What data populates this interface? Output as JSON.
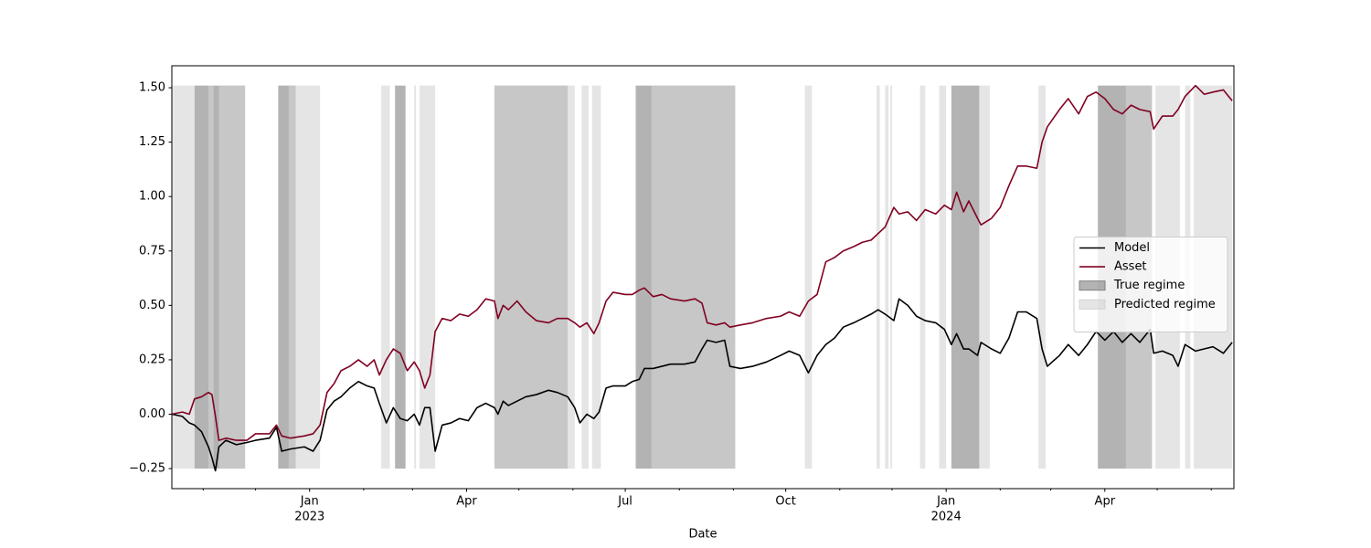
{
  "chart_data": {
    "type": "line",
    "xlabel": "Date",
    "xlim": [
      "2022-10-14",
      "2024-06-14"
    ],
    "ylim": [
      -0.342,
      1.601
    ],
    "xticks": [
      {
        "value": "2023-01-01",
        "label": "Jan"
      },
      {
        "value": "2023-04-01",
        "label": "Apr"
      },
      {
        "value": "2023-07-01",
        "label": "Jul"
      },
      {
        "value": "2023-10-01",
        "label": "Oct"
      },
      {
        "value": "2024-01-01",
        "label": "Jan"
      },
      {
        "value": "2024-04-01",
        "label": "Apr"
      }
    ],
    "xticks_year": [
      {
        "value": "2023-01-01",
        "label": "2023"
      },
      {
        "value": "2024-01-01",
        "label": "2024"
      }
    ],
    "xminorticks": [
      "2022-11-01",
      "2022-12-01",
      "2023-02-01",
      "2023-03-01",
      "2023-05-01",
      "2023-06-01",
      "2023-08-01",
      "2023-09-01",
      "2023-11-01",
      "2023-12-01",
      "2024-02-01",
      "2024-03-01",
      "2024-05-01",
      "2024-06-01"
    ],
    "yticks": [
      {
        "value": -0.25,
        "label": "−0.25"
      },
      {
        "value": 0,
        "label": "0.00"
      },
      0.25,
      {
        "value": 0.5,
        "label": "0.50"
      },
      0.75,
      {
        "value": 1,
        "label": "1.00"
      },
      1.25,
      {
        "value": 1.5,
        "label": "1.50"
      }
    ],
    "legend": "center right",
    "x": [
      "2022-10-14",
      "2022-10-20",
      "2022-10-24",
      "2022-10-27",
      "2022-10-31",
      "2022-11-04",
      "2022-11-06",
      "2022-11-08",
      "2022-11-10",
      "2022-11-14",
      "2022-11-20",
      "2022-11-26",
      "2022-12-01",
      "2022-12-09",
      "2022-12-13",
      "2022-12-16",
      "2022-12-21",
      "2022-12-29",
      "2023-01-03",
      "2023-01-07",
      "2023-01-11",
      "2023-01-15",
      "2023-01-19",
      "2023-01-24",
      "2023-01-29",
      "2023-02-03",
      "2023-02-07",
      "2023-02-10",
      "2023-02-14",
      "2023-02-18",
      "2023-02-22",
      "2023-02-26",
      "2023-03-02",
      "2023-03-05",
      "2023-03-08",
      "2023-03-11",
      "2023-03-14",
      "2023-03-18",
      "2023-03-23",
      "2023-03-28",
      "2023-04-02",
      "2023-04-07",
      "2023-04-12",
      "2023-04-17",
      "2023-04-19",
      "2023-04-22",
      "2023-04-25",
      "2023-04-30",
      "2023-05-05",
      "2023-05-11",
      "2023-05-18",
      "2023-05-23",
      "2023-05-29",
      "2023-06-02",
      "2023-06-05",
      "2023-06-09",
      "2023-06-13",
      "2023-06-16",
      "2023-06-20",
      "2023-06-24",
      "2023-07-01",
      "2023-07-05",
      "2023-07-09",
      "2023-07-12",
      "2023-07-17",
      "2023-07-22",
      "2023-07-27",
      "2023-08-04",
      "2023-08-10",
      "2023-08-14",
      "2023-08-17",
      "2023-08-22",
      "2023-08-27",
      "2023-08-30",
      "2023-09-05",
      "2023-09-12",
      "2023-09-20",
      "2023-09-28",
      "2023-10-03",
      "2023-10-09",
      "2023-10-14",
      "2023-10-19",
      "2023-10-24",
      "2023-10-29",
      "2023-11-03",
      "2023-11-09",
      "2023-11-14",
      "2023-11-19",
      "2023-11-23",
      "2023-11-27",
      "2023-12-02",
      "2023-12-05",
      "2023-12-10",
      "2023-12-15",
      "2023-12-20",
      "2023-12-26",
      "2023-12-31",
      "2024-01-04",
      "2024-01-07",
      "2024-01-11",
      "2024-01-14",
      "2024-01-19",
      "2024-01-21",
      "2024-01-27",
      "2024-02-01",
      "2024-02-06",
      "2024-02-11",
      "2024-02-16",
      "2024-02-22",
      "2024-02-25",
      "2024-02-28",
      "2024-03-06",
      "2024-03-11",
      "2024-03-17",
      "2024-03-22",
      "2024-03-27",
      "2024-04-01",
      "2024-04-06",
      "2024-04-11",
      "2024-04-16",
      "2024-04-21",
      "2024-04-27",
      "2024-04-29",
      "2024-05-04",
      "2024-05-10",
      "2024-05-13",
      "2024-05-17",
      "2024-05-23",
      "2024-05-28",
      "2024-06-02",
      "2024-06-08",
      "2024-06-13"
    ],
    "series": [
      {
        "name": "Model",
        "color": "#000000",
        "values": [
          0.0,
          -0.01,
          -0.04,
          -0.05,
          -0.08,
          -0.15,
          -0.2,
          -0.26,
          -0.15,
          -0.12,
          -0.14,
          -0.13,
          -0.12,
          -0.11,
          -0.06,
          -0.17,
          -0.16,
          -0.15,
          -0.17,
          -0.12,
          0.02,
          0.06,
          0.08,
          0.12,
          0.15,
          0.13,
          0.12,
          0.05,
          -0.04,
          0.03,
          -0.02,
          -0.03,
          0.0,
          -0.05,
          0.03,
          0.03,
          -0.17,
          -0.05,
          -0.04,
          -0.02,
          -0.03,
          0.03,
          0.05,
          0.03,
          0.0,
          0.06,
          0.04,
          0.06,
          0.08,
          0.09,
          0.11,
          0.1,
          0.08,
          0.03,
          -0.04,
          0.0,
          -0.02,
          0.01,
          0.12,
          0.13,
          0.13,
          0.15,
          0.16,
          0.21,
          0.21,
          0.22,
          0.23,
          0.23,
          0.24,
          0.3,
          0.34,
          0.33,
          0.34,
          0.22,
          0.21,
          0.22,
          0.24,
          0.27,
          0.29,
          0.27,
          0.19,
          0.27,
          0.32,
          0.35,
          0.4,
          0.42,
          0.44,
          0.46,
          0.48,
          0.46,
          0.43,
          0.53,
          0.5,
          0.45,
          0.43,
          0.42,
          0.39,
          0.32,
          0.37,
          0.3,
          0.3,
          0.27,
          0.33,
          0.3,
          0.28,
          0.35,
          0.47,
          0.47,
          0.44,
          0.3,
          0.22,
          0.27,
          0.32,
          0.27,
          0.32,
          0.38,
          0.34,
          0.38,
          0.33,
          0.37,
          0.33,
          0.39,
          0.28,
          0.29,
          0.27,
          0.22,
          0.32,
          0.29,
          0.3,
          0.31,
          0.28,
          0.33
        ]
      },
      {
        "name": "Asset",
        "color": "#800020",
        "values": [
          0.0,
          0.01,
          0.0,
          0.07,
          0.08,
          0.1,
          0.09,
          -0.01,
          -0.12,
          -0.11,
          -0.12,
          -0.12,
          -0.09,
          -0.09,
          -0.05,
          -0.1,
          -0.11,
          -0.1,
          -0.09,
          -0.05,
          0.1,
          0.14,
          0.2,
          0.22,
          0.25,
          0.22,
          0.25,
          0.18,
          0.25,
          0.3,
          0.28,
          0.2,
          0.24,
          0.2,
          0.12,
          0.18,
          0.38,
          0.44,
          0.43,
          0.46,
          0.45,
          0.48,
          0.53,
          0.52,
          0.44,
          0.5,
          0.48,
          0.52,
          0.47,
          0.43,
          0.42,
          0.44,
          0.44,
          0.42,
          0.4,
          0.42,
          0.37,
          0.42,
          0.52,
          0.56,
          0.55,
          0.55,
          0.57,
          0.58,
          0.54,
          0.55,
          0.53,
          0.52,
          0.53,
          0.51,
          0.42,
          0.41,
          0.42,
          0.4,
          0.41,
          0.42,
          0.44,
          0.45,
          0.47,
          0.45,
          0.52,
          0.55,
          0.7,
          0.72,
          0.75,
          0.77,
          0.79,
          0.8,
          0.83,
          0.86,
          0.95,
          0.92,
          0.93,
          0.89,
          0.94,
          0.92,
          0.96,
          0.94,
          1.02,
          0.93,
          0.98,
          0.9,
          0.87,
          0.9,
          0.95,
          1.05,
          1.14,
          1.14,
          1.13,
          1.25,
          1.32,
          1.4,
          1.45,
          1.38,
          1.46,
          1.48,
          1.45,
          1.4,
          1.38,
          1.42,
          1.4,
          1.39,
          1.31,
          1.37,
          1.37,
          1.4,
          1.46,
          1.51,
          1.47,
          1.48,
          1.49,
          1.44
        ]
      }
    ],
    "span_ylim": [
      -0.25,
      1.51
    ],
    "regions": [
      {
        "name": "True regime",
        "color": "#808080",
        "spans": [
          [
            "2022-10-27",
            "2022-11-25"
          ],
          [
            "2022-12-14",
            "2022-12-24"
          ],
          [
            "2023-02-19",
            "2023-02-25"
          ],
          [
            "2023-04-17",
            "2023-05-29"
          ],
          [
            "2023-07-07",
            "2023-09-02"
          ],
          [
            "2024-01-04",
            "2024-01-20"
          ],
          [
            "2024-03-28",
            "2024-04-28"
          ]
        ]
      },
      {
        "name": "Predicted regime",
        "color": "#d3d3d3",
        "spans": [
          [
            "2022-10-14",
            "2022-10-27"
          ],
          [
            "2022-11-04",
            "2022-11-07"
          ],
          [
            "2022-11-10",
            "2022-11-25"
          ],
          [
            "2022-12-20",
            "2023-01-07"
          ],
          [
            "2023-02-11",
            "2023-02-16"
          ],
          [
            "2023-03-02",
            "2023-03-03"
          ],
          [
            "2023-03-05",
            "2023-03-14"
          ],
          [
            "2023-04-17",
            "2023-06-02"
          ],
          [
            "2023-06-06",
            "2023-06-10"
          ],
          [
            "2023-06-12",
            "2023-06-17"
          ],
          [
            "2023-07-16",
            "2023-09-02"
          ],
          [
            "2023-10-12",
            "2023-10-16"
          ],
          [
            "2023-11-22",
            "2023-11-24"
          ],
          [
            "2023-11-27",
            "2023-11-29"
          ],
          [
            "2023-11-30",
            "2023-12-01"
          ],
          [
            "2023-12-17",
            "2023-12-20"
          ],
          [
            "2023-12-28",
            "2024-01-01"
          ],
          [
            "2024-01-20",
            "2024-01-26"
          ],
          [
            "2024-02-23",
            "2024-02-27"
          ],
          [
            "2024-04-13",
            "2024-04-28"
          ],
          [
            "2024-04-30",
            "2024-05-14"
          ],
          [
            "2024-05-17",
            "2024-05-20"
          ],
          [
            "2024-05-22",
            "2024-06-13"
          ]
        ]
      }
    ]
  }
}
